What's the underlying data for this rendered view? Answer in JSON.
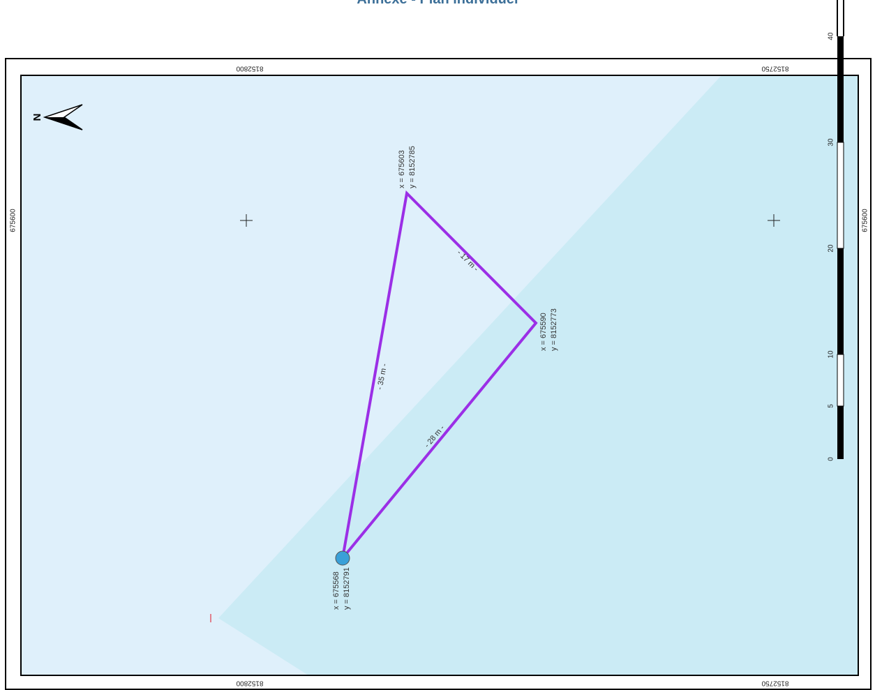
{
  "title": "Annexe - Plan individuel",
  "colors": {
    "land": "#dff0fb",
    "water": "#cbebf5",
    "parcel_line": "#9b2fe6",
    "point_fill": "#3aa0d8",
    "frame": "#000000"
  },
  "frame_labels": {
    "top_left": "8152800",
    "top_right": "8152750",
    "bottom_left": "8152800",
    "bottom_right": "8152750",
    "left": "675600",
    "right": "675600"
  },
  "vertices": [
    {
      "x_label": "x = 675603",
      "y_label": "y = 8152785"
    },
    {
      "x_label": "x = 675590",
      "y_label": "y = 8152773"
    },
    {
      "x_label": "x = 675568",
      "y_label": "y = 8152791"
    }
  ],
  "distances": {
    "top_right": "- 17 m -",
    "left": "- 35 m -",
    "bottom": "- 28 m -"
  },
  "scale_bar": {
    "ticks": [
      "0",
      "5",
      "10",
      "20",
      "30",
      "40"
    ]
  },
  "north_label": "N",
  "icons": {
    "north_arrow": "north-arrow-icon",
    "grid_cross": "grid-cross-icon",
    "point_marker": "point-marker-icon"
  }
}
